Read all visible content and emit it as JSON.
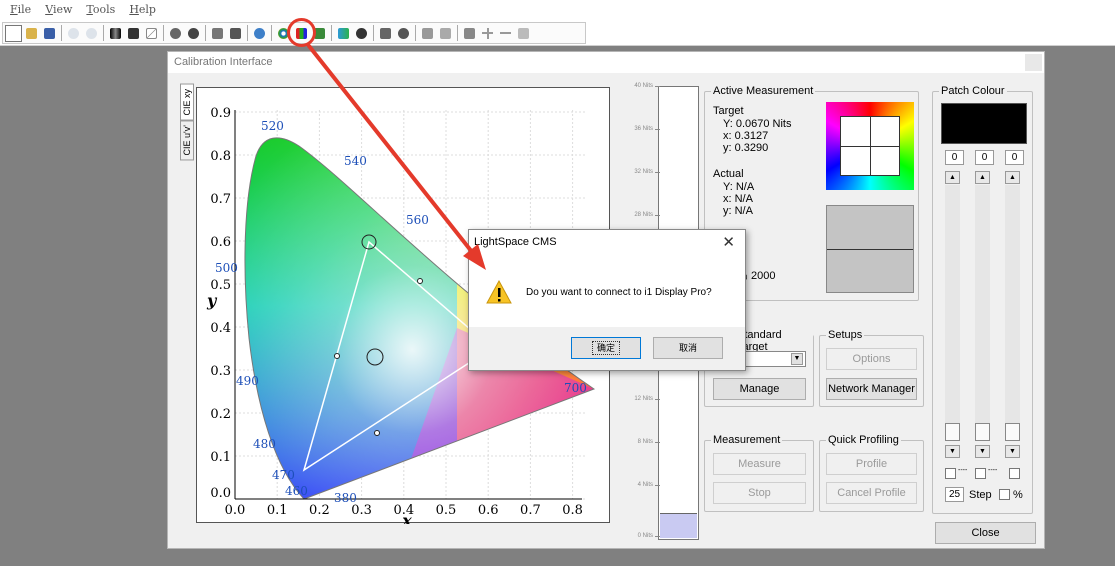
{
  "menu": [
    "File",
    "View",
    "Tools",
    "Help"
  ],
  "toolbar": {
    "highlighted_tool_icon": "i1-display-connect-icon"
  },
  "window": {
    "title": "Calibration Interface",
    "tabs": [
      "CIE xy",
      "CIE u'v'"
    ]
  },
  "cie_chart": {
    "x_axis_label": "x",
    "y_axis_label": "y",
    "x_ticks": [
      "0.0",
      "0.1",
      "0.2",
      "0.3",
      "0.4",
      "0.5",
      "0.6",
      "0.7",
      "0.8"
    ],
    "y_ticks": [
      "0.0",
      "0.1",
      "0.2",
      "0.3",
      "0.4",
      "0.5",
      "0.6",
      "0.7",
      "0.8",
      "0.9"
    ],
    "wavelengths": [
      "380",
      "460",
      "470",
      "480",
      "490",
      "500",
      "520",
      "540",
      "560",
      "700"
    ]
  },
  "nits_scale": {
    "labels": [
      "40 Nits",
      "36 Nits",
      "32 Nits",
      "28 Nits",
      "12 Nits",
      "8 Nits",
      "4 Nits",
      "0 Nits"
    ],
    "fill_fraction": 0.055
  },
  "active_measurement": {
    "title": "Active Measurement",
    "target_label": "Target",
    "target_Y": "Y: 0.0670 Nits",
    "target_x": "x: 0.3127",
    "target_y": "y: 0.3290",
    "actual_label": "Actual",
    "actual_Y": "Y: N/A",
    "actual_x": "x: N/A",
    "actual_y": "y: N/A",
    "radio_partial": "6",
    "radio_selected": "2000"
  },
  "standard_target": {
    "title": "Standard Target",
    "manage": "Manage"
  },
  "setups": {
    "title": "Setups",
    "options": "Options",
    "network_manager": "Network Manager"
  },
  "measurement": {
    "title": "Measurement",
    "measure": "Measure",
    "stop": "Stop"
  },
  "quick_profiling": {
    "title": "Quick Profiling",
    "profile": "Profile",
    "cancel_profile": "Cancel Profile"
  },
  "patch_colour": {
    "title": "Patch Colour",
    "swatch": "#000000",
    "r": "0",
    "g": "0",
    "b": "0",
    "step_value": "25",
    "step_label": "Step",
    "percent_label": "%",
    "dash": "----"
  },
  "close_button": "Close",
  "dialog": {
    "title": "LightSpace CMS",
    "close": "✕",
    "message": "Do you want to connect to i1 Display Pro?",
    "ok": "确定",
    "cancel": "取消"
  },
  "annotation": {
    "color": "#e43a2b"
  }
}
